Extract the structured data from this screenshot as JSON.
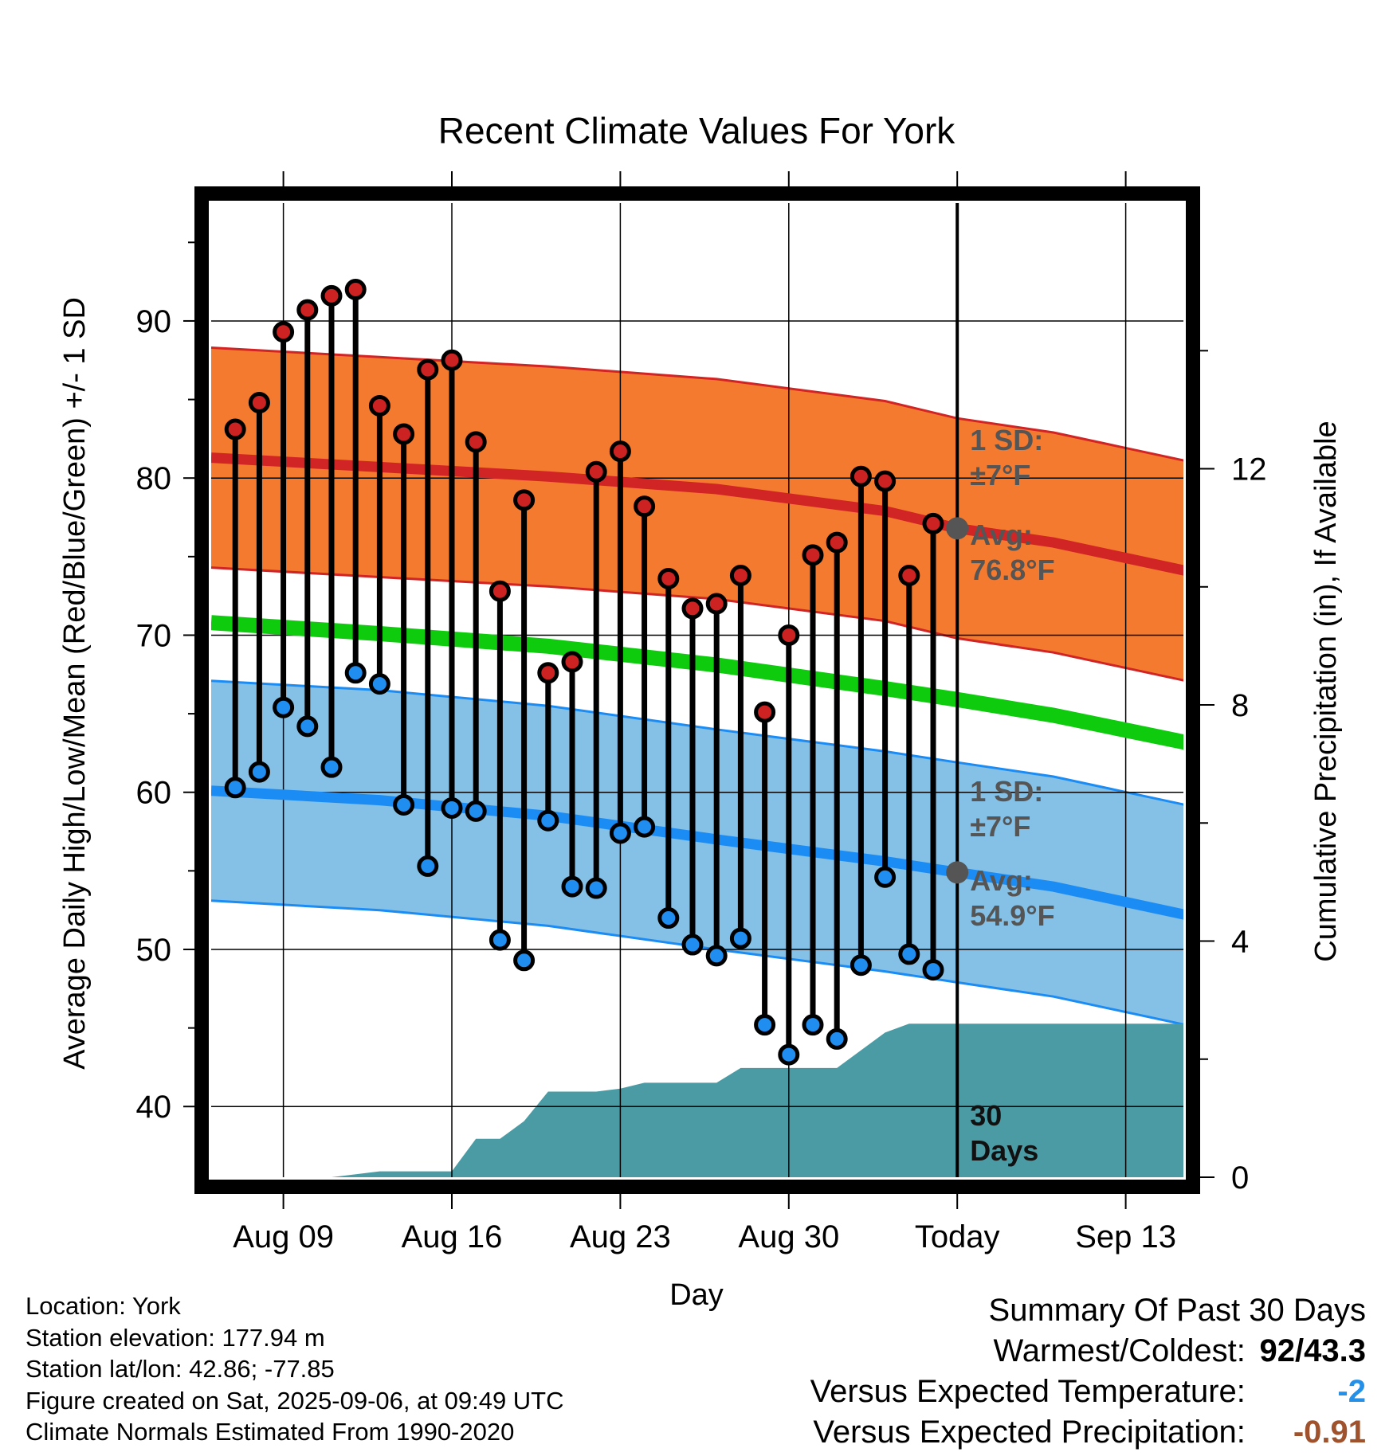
{
  "chart_data": {
    "type": "line",
    "title": "Recent Climate Values For York",
    "xlabel": "Day",
    "ylabel": "Average Daily High/Low/Mean (Red/Blue/Green) +/- 1 SD",
    "y2label": "Cumulative Precipitation (in), If Available",
    "ylim": [
      35.5,
      97.5
    ],
    "y2lim": [
      0,
      16.5
    ],
    "yticks": [
      40,
      50,
      60,
      70,
      80,
      90
    ],
    "y2ticks": [
      0,
      4,
      8,
      12
    ],
    "x_range": [
      "2025-08-06",
      "2025-09-17"
    ],
    "xtick_labels": [
      {
        "date": "2025-08-09",
        "label": "Aug 09"
      },
      {
        "date": "2025-08-16",
        "label": "Aug 16"
      },
      {
        "date": "2025-08-23",
        "label": "Aug 23"
      },
      {
        "date": "2025-08-30",
        "label": "Aug 30"
      },
      {
        "date": "2025-09-06",
        "label": "Today"
      },
      {
        "date": "2025-09-13",
        "label": "Sep 13"
      }
    ],
    "grid": true,
    "observed": {
      "dates": [
        "2025-08-07",
        "2025-08-08",
        "2025-08-09",
        "2025-08-10",
        "2025-08-11",
        "2025-08-12",
        "2025-08-13",
        "2025-08-14",
        "2025-08-15",
        "2025-08-16",
        "2025-08-17",
        "2025-08-18",
        "2025-08-19",
        "2025-08-20",
        "2025-08-21",
        "2025-08-22",
        "2025-08-23",
        "2025-08-24",
        "2025-08-25",
        "2025-08-26",
        "2025-08-27",
        "2025-08-28",
        "2025-08-29",
        "2025-08-30",
        "2025-08-31",
        "2025-09-01",
        "2025-09-02",
        "2025-09-03",
        "2025-09-04",
        "2025-09-05"
      ],
      "highs": [
        83.1,
        84.8,
        89.3,
        90.7,
        91.6,
        92.0,
        84.6,
        82.8,
        86.9,
        87.5,
        82.3,
        72.8,
        78.6,
        67.6,
        68.3,
        80.4,
        81.7,
        78.2,
        73.6,
        71.7,
        72.0,
        73.8,
        65.1,
        70.0,
        75.1,
        75.9,
        80.1,
        79.8,
        73.8,
        77.1
      ],
      "lows": [
        60.3,
        61.3,
        65.4,
        64.2,
        61.6,
        67.6,
        66.9,
        59.2,
        55.3,
        59.0,
        58.8,
        50.6,
        49.3,
        58.2,
        54.0,
        53.9,
        57.4,
        57.8,
        52.0,
        50.3,
        49.6,
        50.7,
        45.2,
        43.3,
        45.2,
        44.3,
        49.0,
        54.6,
        49.7,
        48.7
      ]
    },
    "normals": {
      "dates": [
        "2025-08-06",
        "2025-08-13",
        "2025-08-20",
        "2025-08-27",
        "2025-09-03",
        "2025-09-06",
        "2025-09-10",
        "2025-09-17"
      ],
      "high_mean": [
        81.3,
        80.7,
        80.1,
        79.3,
        77.9,
        76.8,
        75.9,
        73.6
      ],
      "low_mean": [
        60.1,
        59.5,
        58.5,
        57.0,
        55.6,
        54.9,
        54.0,
        51.7
      ],
      "daily_mean": [
        70.8,
        70.1,
        69.3,
        68.1,
        66.6,
        65.9,
        64.9,
        62.7
      ],
      "sd": 7
    },
    "precip": {
      "dates": [
        "2025-08-06",
        "2025-08-11",
        "2025-08-13",
        "2025-08-16",
        "2025-08-17",
        "2025-08-18",
        "2025-08-19",
        "2025-08-20",
        "2025-08-21",
        "2025-08-22",
        "2025-08-23",
        "2025-08-24",
        "2025-08-25",
        "2025-08-26",
        "2025-08-27",
        "2025-08-28",
        "2025-08-29",
        "2025-08-30",
        "2025-08-31",
        "2025-09-01",
        "2025-09-02",
        "2025-09-03",
        "2025-09-04",
        "2025-09-17"
      ],
      "values": [
        0.0,
        0.0,
        0.1,
        0.1,
        0.65,
        0.65,
        0.95,
        1.45,
        1.45,
        1.45,
        1.5,
        1.6,
        1.6,
        1.6,
        1.6,
        1.85,
        1.85,
        1.85,
        1.85,
        1.85,
        2.15,
        2.45,
        2.6,
        2.6
      ]
    },
    "annotations": {
      "high_sd": [
        "1 SD:",
        "±7°F"
      ],
      "high_avg": [
        "Avg:",
        "76.8°F"
      ],
      "low_sd": [
        "1 SD:",
        "±7°F"
      ],
      "low_avg": [
        "Avg:",
        "54.9°F"
      ],
      "period": [
        "30",
        "Days"
      ]
    },
    "colors": {
      "high_band": "#f47a30",
      "high_line": "#d12424",
      "low_band": "#85c1e7",
      "low_line": "#1c8cf5",
      "mean_line": "#0ecb0e",
      "precip": "#4a9ba4",
      "high_marker": "#cc2222",
      "low_marker": "#1f8ef0",
      "annotation": "#555555"
    }
  },
  "footer": {
    "location": "Location: York",
    "elevation": "Station elevation: 177.94 m",
    "latlon": "Station lat/lon: 42.86; -77.85",
    "created": "Figure created on Sat, 2025-09-06, at 09:49 UTC",
    "normals": "Climate Normals Estimated From 1990-2020"
  },
  "summary": {
    "title": "Summary Of Past 30 Days",
    "warmest_label": "Warmest/Coldest:",
    "warmest_value": "92/43.3",
    "temp_label": "Versus Expected Temperature:",
    "temp_value": "-2",
    "temp_color": "#2590e8",
    "precip_label": "Versus Expected Precipitation:",
    "precip_value": "-0.91",
    "precip_color": "#a0522d"
  }
}
